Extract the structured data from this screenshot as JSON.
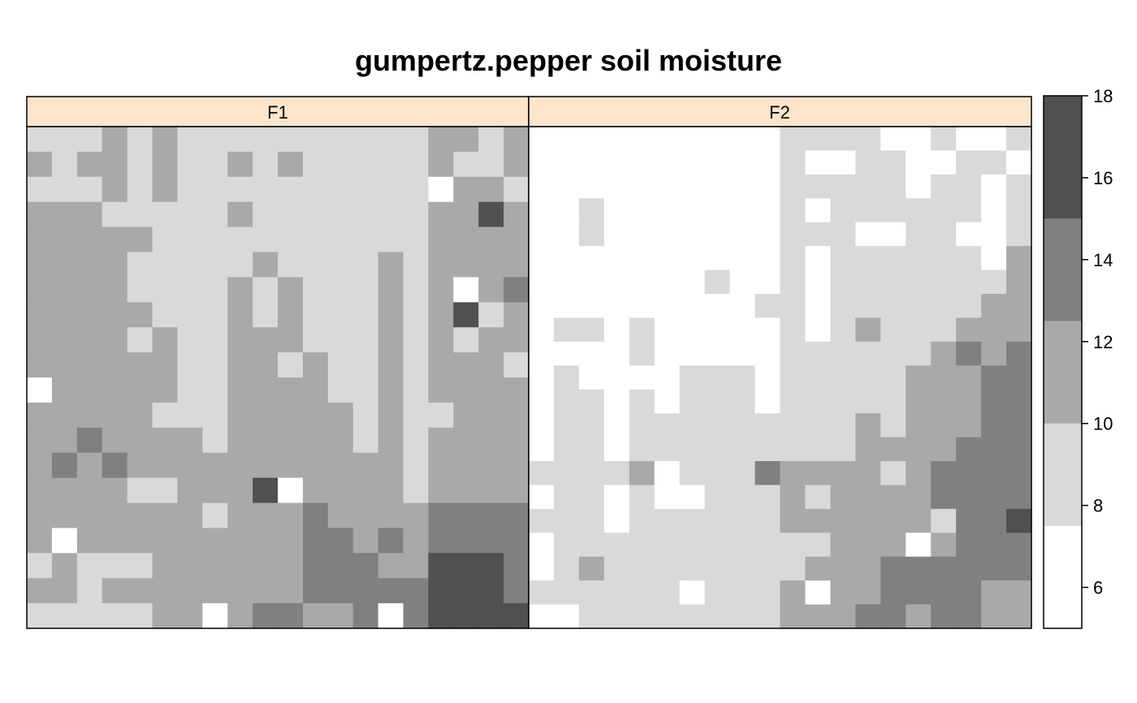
{
  "chart_data": {
    "type": "heatmap",
    "title": "gumpertz.pepper soil moisture",
    "xlabel": "",
    "ylabel": "",
    "panels": [
      {
        "name": "F1",
        "rows": [
          [
            9,
            9,
            9,
            11,
            9,
            11,
            9,
            9,
            9,
            9,
            9,
            9,
            9,
            9,
            9,
            9,
            11,
            11,
            9,
            11
          ],
          [
            11,
            9,
            11,
            11,
            9,
            11,
            9,
            9,
            11,
            9,
            11,
            9,
            9,
            9,
            9,
            9,
            11,
            9,
            9,
            11
          ],
          [
            9,
            9,
            9,
            11,
            9,
            11,
            9,
            9,
            9,
            9,
            9,
            9,
            9,
            9,
            9,
            9,
            5,
            11,
            11,
            9
          ],
          [
            11,
            11,
            11,
            9,
            9,
            9,
            9,
            9,
            11,
            9,
            9,
            9,
            9,
            9,
            9,
            9,
            11,
            11,
            17,
            11
          ],
          [
            11,
            11,
            11,
            11,
            11,
            9,
            9,
            9,
            9,
            9,
            9,
            9,
            9,
            9,
            9,
            9,
            11,
            11,
            11,
            11
          ],
          [
            11,
            11,
            11,
            11,
            9,
            9,
            9,
            9,
            9,
            11,
            9,
            9,
            9,
            9,
            11,
            9,
            11,
            11,
            11,
            11
          ],
          [
            11,
            11,
            11,
            11,
            9,
            9,
            9,
            9,
            11,
            9,
            11,
            9,
            9,
            9,
            11,
            9,
            11,
            7,
            11,
            13
          ],
          [
            11,
            11,
            11,
            11,
            11,
            9,
            9,
            9,
            11,
            9,
            11,
            9,
            9,
            9,
            11,
            9,
            11,
            17,
            9,
            11
          ],
          [
            11,
            11,
            11,
            11,
            9,
            11,
            9,
            9,
            11,
            11,
            11,
            9,
            9,
            9,
            11,
            9,
            11,
            9,
            11,
            11
          ],
          [
            11,
            11,
            11,
            11,
            11,
            11,
            9,
            9,
            11,
            11,
            9,
            11,
            9,
            9,
            11,
            9,
            11,
            11,
            11,
            9
          ],
          [
            5,
            11,
            11,
            11,
            11,
            11,
            9,
            9,
            11,
            11,
            11,
            11,
            9,
            9,
            11,
            9,
            11,
            11,
            11,
            11
          ],
          [
            11,
            11,
            11,
            11,
            11,
            9,
            9,
            9,
            11,
            11,
            11,
            11,
            11,
            9,
            11,
            9,
            9,
            11,
            11,
            11
          ],
          [
            11,
            11,
            13,
            11,
            11,
            11,
            11,
            9,
            11,
            11,
            11,
            11,
            11,
            9,
            11,
            9,
            11,
            11,
            11,
            11
          ],
          [
            11,
            13,
            11,
            13,
            11,
            11,
            11,
            11,
            11,
            11,
            11,
            11,
            11,
            11,
            11,
            9,
            11,
            11,
            11,
            11
          ],
          [
            11,
            11,
            11,
            11,
            9,
            9,
            11,
            11,
            11,
            17,
            5,
            11,
            11,
            11,
            11,
            9,
            11,
            11,
            11,
            11
          ],
          [
            11,
            11,
            11,
            11,
            11,
            11,
            11,
            9,
            11,
            11,
            11,
            13,
            11,
            11,
            11,
            11,
            13,
            13,
            13,
            13
          ],
          [
            11,
            5,
            11,
            11,
            11,
            11,
            11,
            11,
            11,
            11,
            11,
            13,
            13,
            11,
            13,
            11,
            13,
            13,
            13,
            13
          ],
          [
            9,
            11,
            9,
            9,
            9,
            11,
            11,
            11,
            11,
            11,
            11,
            13,
            13,
            13,
            11,
            11,
            17,
            17,
            17,
            13
          ],
          [
            11,
            11,
            9,
            11,
            11,
            11,
            11,
            11,
            11,
            11,
            11,
            13,
            13,
            13,
            13,
            13,
            17,
            17,
            17,
            13
          ],
          [
            9,
            9,
            9,
            9,
            9,
            11,
            11,
            5,
            11,
            13,
            13,
            11,
            11,
            13,
            5,
            13,
            17,
            17,
            17,
            17
          ]
        ]
      },
      {
        "name": "F2",
        "rows": [
          [
            7,
            7,
            7,
            7,
            7,
            7,
            7,
            7,
            7,
            7,
            9,
            9,
            9,
            9,
            7,
            7,
            9,
            7,
            7,
            9
          ],
          [
            7,
            7,
            7,
            7,
            7,
            7,
            7,
            7,
            7,
            7,
            9,
            7,
            5,
            9,
            9,
            7,
            7,
            9,
            9,
            7
          ],
          [
            7,
            7,
            7,
            7,
            7,
            7,
            7,
            7,
            7,
            7,
            9,
            9,
            9,
            9,
            9,
            7,
            9,
            9,
            7,
            9
          ],
          [
            7,
            7,
            9,
            7,
            7,
            7,
            7,
            7,
            7,
            7,
            9,
            7,
            9,
            9,
            9,
            9,
            9,
            9,
            7,
            9
          ],
          [
            7,
            7,
            9,
            7,
            7,
            7,
            7,
            7,
            7,
            7,
            9,
            9,
            9,
            7,
            7,
            9,
            9,
            7,
            7,
            9
          ],
          [
            7,
            7,
            7,
            7,
            7,
            7,
            7,
            7,
            7,
            7,
            9,
            7,
            9,
            9,
            9,
            9,
            9,
            9,
            7,
            11
          ],
          [
            7,
            7,
            7,
            7,
            7,
            7,
            7,
            9,
            7,
            7,
            9,
            5,
            9,
            9,
            9,
            9,
            9,
            9,
            9,
            11
          ],
          [
            7,
            7,
            7,
            7,
            7,
            7,
            7,
            7,
            7,
            9,
            9,
            7,
            9,
            9,
            9,
            9,
            9,
            9,
            11,
            11
          ],
          [
            7,
            9,
            9,
            7,
            9,
            7,
            7,
            7,
            7,
            7,
            9,
            5,
            9,
            11,
            9,
            9,
            9,
            11,
            11,
            11
          ],
          [
            7,
            7,
            7,
            7,
            9,
            7,
            7,
            7,
            7,
            7,
            9,
            9,
            9,
            9,
            9,
            9,
            11,
            13,
            11,
            13
          ],
          [
            7,
            9,
            7,
            7,
            7,
            7,
            9,
            9,
            9,
            7,
            9,
            9,
            9,
            9,
            9,
            11,
            11,
            11,
            13,
            13
          ],
          [
            7,
            9,
            9,
            7,
            9,
            7,
            9,
            9,
            9,
            7,
            9,
            9,
            9,
            9,
            9,
            11,
            11,
            11,
            13,
            13
          ],
          [
            7,
            9,
            9,
            7,
            9,
            9,
            9,
            9,
            9,
            9,
            9,
            9,
            9,
            11,
            9,
            11,
            11,
            11,
            13,
            13
          ],
          [
            7,
            9,
            9,
            7,
            9,
            9,
            9,
            9,
            9,
            9,
            9,
            9,
            9,
            11,
            11,
            11,
            11,
            13,
            13,
            13
          ],
          [
            9,
            9,
            9,
            9,
            11,
            7,
            9,
            9,
            9,
            13,
            11,
            11,
            11,
            11,
            9,
            11,
            13,
            13,
            13,
            13
          ],
          [
            7,
            9,
            9,
            7,
            9,
            7,
            7,
            9,
            9,
            9,
            11,
            9,
            11,
            11,
            11,
            11,
            13,
            13,
            13,
            13
          ],
          [
            9,
            9,
            9,
            7,
            9,
            9,
            9,
            9,
            9,
            9,
            11,
            11,
            11,
            11,
            11,
            11,
            9,
            13,
            13,
            17
          ],
          [
            7,
            9,
            9,
            9,
            9,
            9,
            9,
            9,
            9,
            9,
            9,
            9,
            11,
            11,
            11,
            5,
            11,
            13,
            13,
            13
          ],
          [
            7,
            9,
            11,
            9,
            9,
            9,
            9,
            9,
            9,
            9,
            9,
            11,
            11,
            11,
            13,
            13,
            13,
            13,
            13,
            13
          ],
          [
            9,
            9,
            9,
            9,
            9,
            9,
            7,
            9,
            9,
            9,
            11,
            5,
            11,
            11,
            13,
            13,
            13,
            13,
            11,
            11
          ],
          [
            7,
            7,
            9,
            9,
            9,
            9,
            9,
            9,
            9,
            9,
            11,
            11,
            11,
            13,
            13,
            11,
            13,
            13,
            11,
            11
          ]
        ]
      }
    ],
    "colorbar": {
      "breaks": [
        5,
        7.5,
        10,
        12.5,
        15,
        18
      ],
      "colors": [
        "#ffffff",
        "#d9d9d9",
        "#a9a9a9",
        "#808080",
        "#505050",
        "#262626"
      ],
      "ticks": [
        6,
        8,
        10,
        12,
        14,
        16,
        18
      ],
      "range": [
        5,
        18
      ]
    },
    "colors": {
      "strip_bg": "#ffe5cc",
      "frame": "#000000"
    }
  }
}
